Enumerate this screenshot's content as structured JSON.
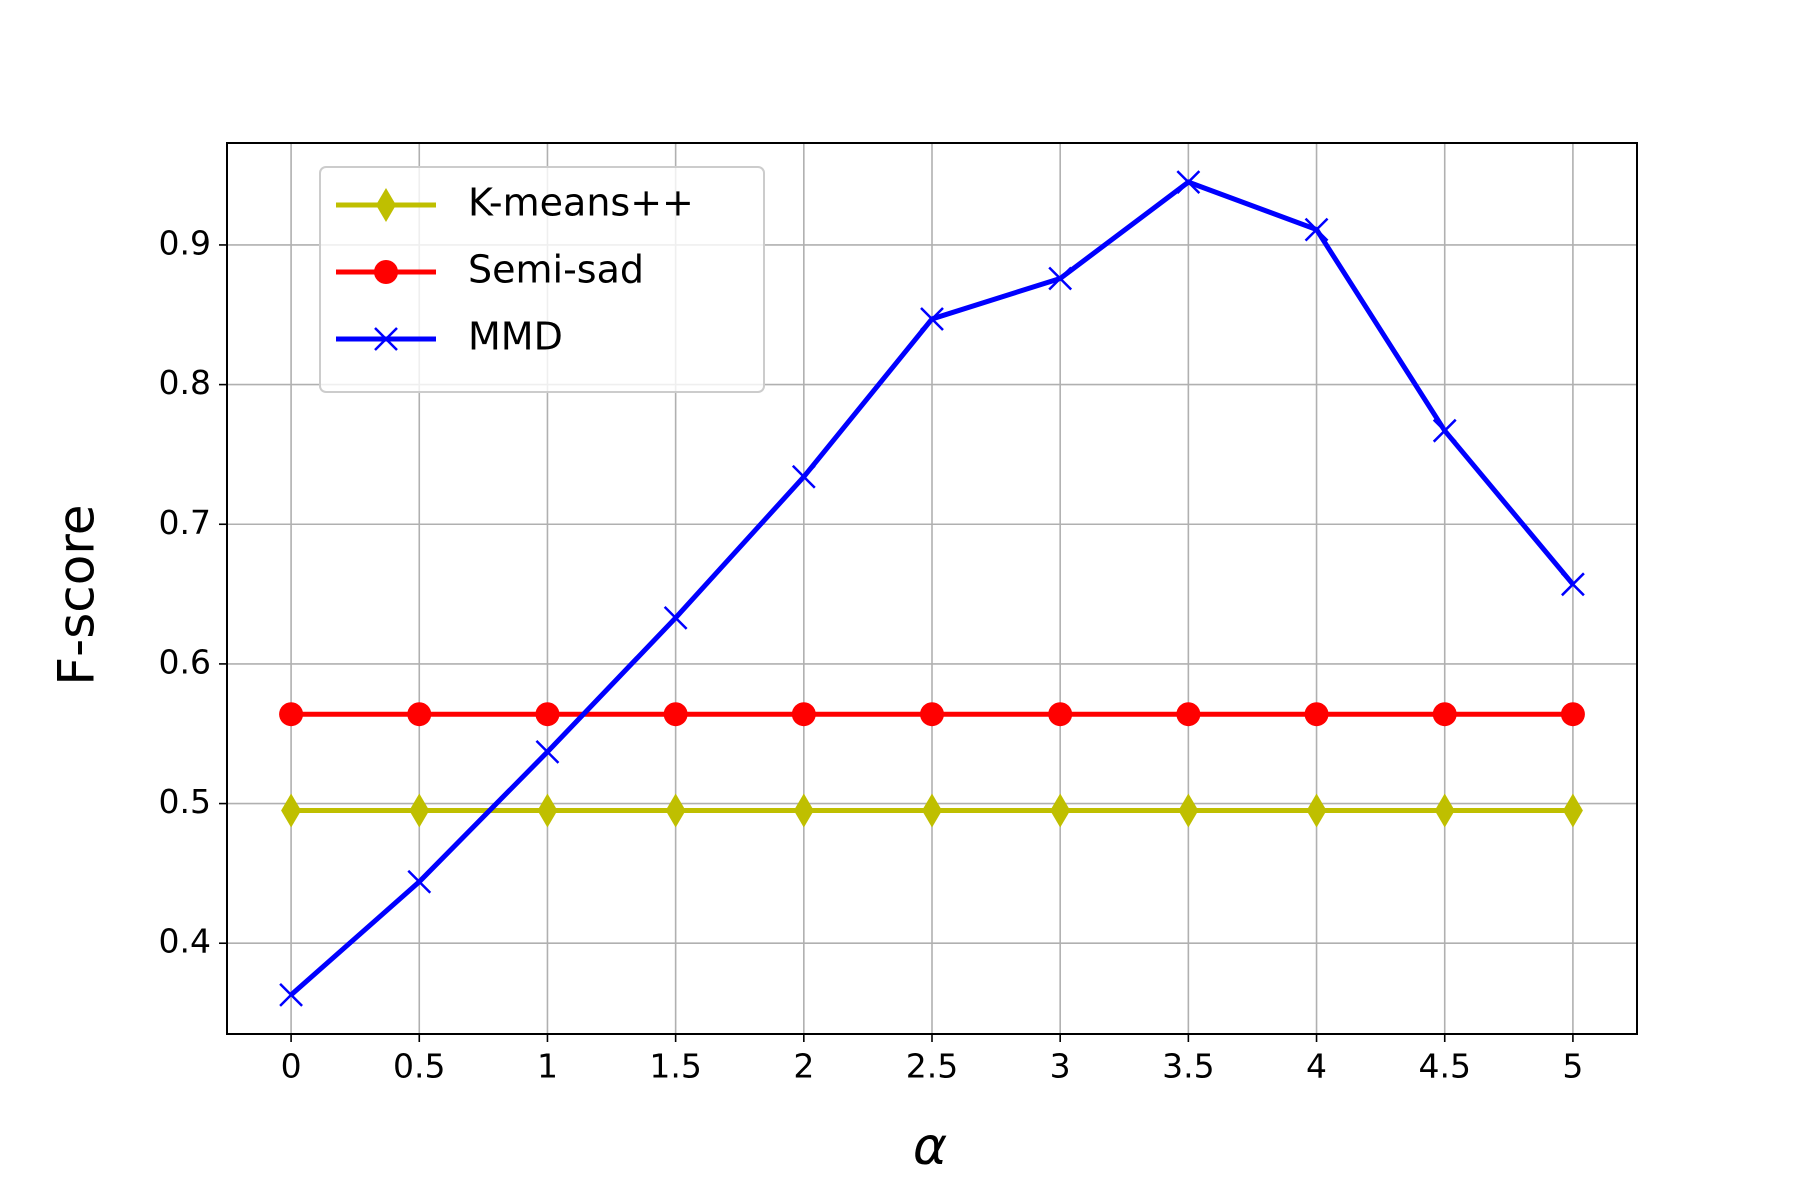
{
  "chart_data": {
    "type": "line",
    "x_label": "α",
    "y_label": "F-score",
    "x": [
      0,
      0.5,
      1,
      1.5,
      2,
      2.5,
      3,
      3.5,
      4,
      4.5,
      5
    ],
    "series": [
      {
        "name": "K-means++",
        "color": "#bfbf00",
        "marker": "diamond",
        "values": [
          0.495,
          0.495,
          0.495,
          0.495,
          0.495,
          0.495,
          0.495,
          0.495,
          0.495,
          0.495,
          0.495
        ]
      },
      {
        "name": "Semi-sad",
        "color": "#ff0000",
        "marker": "circle",
        "values": [
          0.564,
          0.564,
          0.564,
          0.564,
          0.564,
          0.564,
          0.564,
          0.564,
          0.564,
          0.564,
          0.564
        ]
      },
      {
        "name": "MMD",
        "color": "#0000ff",
        "marker": "x",
        "values": [
          0.363,
          0.444,
          0.537,
          0.633,
          0.734,
          0.847,
          0.876,
          0.945,
          0.911,
          0.767,
          0.657
        ]
      }
    ],
    "xlim": [
      -0.25,
      5.25
    ],
    "ylim": [
      0.335,
      0.973
    ],
    "xticks": [
      0,
      0.5,
      1,
      1.5,
      2,
      2.5,
      3,
      3.5,
      4,
      4.5,
      5
    ],
    "yticks": [
      0.4,
      0.5,
      0.6,
      0.7,
      0.8,
      0.9
    ],
    "grid": true,
    "legend": "upper-left"
  }
}
